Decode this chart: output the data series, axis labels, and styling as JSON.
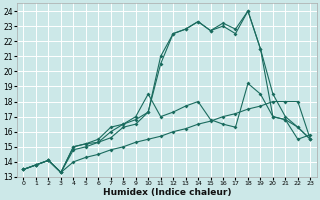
{
  "xlabel": "Humidex (Indice chaleur)",
  "bg_color": "#cce8e8",
  "grid_color": "#b0d4d4",
  "line_color": "#1a6b5e",
  "xlim": [
    -0.5,
    23.5
  ],
  "ylim": [
    13.0,
    24.5
  ],
  "xticks": [
    0,
    1,
    2,
    3,
    4,
    5,
    6,
    7,
    8,
    9,
    10,
    11,
    12,
    13,
    14,
    15,
    16,
    17,
    18,
    19,
    20,
    21,
    22,
    23
  ],
  "yticks": [
    13,
    14,
    15,
    16,
    17,
    18,
    19,
    20,
    21,
    22,
    23,
    24
  ],
  "line1_x": [
    0,
    1,
    2,
    3,
    4,
    5,
    6,
    7,
    8,
    9,
    10,
    11,
    12,
    13,
    14,
    15,
    16,
    17,
    18,
    19,
    20,
    21,
    22,
    23
  ],
  "line1_y": [
    13.5,
    13.8,
    14.1,
    13.3,
    14.0,
    14.3,
    14.5,
    14.8,
    15.0,
    15.3,
    15.5,
    15.7,
    16.0,
    16.2,
    16.5,
    16.7,
    17.0,
    17.2,
    17.5,
    17.7,
    18.0,
    18.0,
    18.0,
    15.5
  ],
  "line2_x": [
    0,
    1,
    2,
    3,
    4,
    5,
    6,
    7,
    8,
    9,
    10,
    11,
    12,
    13,
    14,
    15,
    16,
    17,
    18,
    19,
    20,
    21,
    22,
    23
  ],
  "line2_y": [
    13.5,
    13.8,
    14.1,
    13.3,
    15.0,
    15.2,
    15.5,
    16.3,
    16.5,
    17.0,
    18.5,
    17.0,
    17.3,
    17.7,
    18.0,
    16.8,
    16.5,
    16.3,
    19.2,
    18.5,
    17.0,
    16.8,
    15.5,
    15.8
  ],
  "line3_x": [
    0,
    1,
    2,
    3,
    4,
    5,
    6,
    7,
    8,
    9,
    10,
    11,
    12,
    13,
    14,
    15,
    16,
    17,
    18,
    19,
    20,
    21,
    22,
    23
  ],
  "line3_y": [
    13.5,
    13.8,
    14.1,
    13.3,
    14.8,
    15.0,
    15.3,
    15.6,
    16.3,
    16.5,
    17.3,
    20.5,
    22.5,
    22.8,
    23.3,
    22.7,
    23.2,
    22.8,
    24.0,
    21.5,
    17.0,
    16.8,
    16.3,
    15.5
  ],
  "line4_x": [
    0,
    1,
    2,
    3,
    4,
    5,
    6,
    7,
    8,
    9,
    10,
    11,
    12,
    13,
    14,
    15,
    16,
    17,
    18,
    19,
    20,
    21,
    22,
    23
  ],
  "line4_y": [
    13.5,
    13.8,
    14.1,
    13.3,
    15.0,
    15.2,
    15.3,
    16.0,
    16.5,
    16.8,
    17.3,
    21.0,
    22.5,
    22.8,
    23.3,
    22.7,
    23.0,
    22.5,
    24.0,
    21.5,
    18.5,
    17.0,
    16.3,
    15.5
  ]
}
